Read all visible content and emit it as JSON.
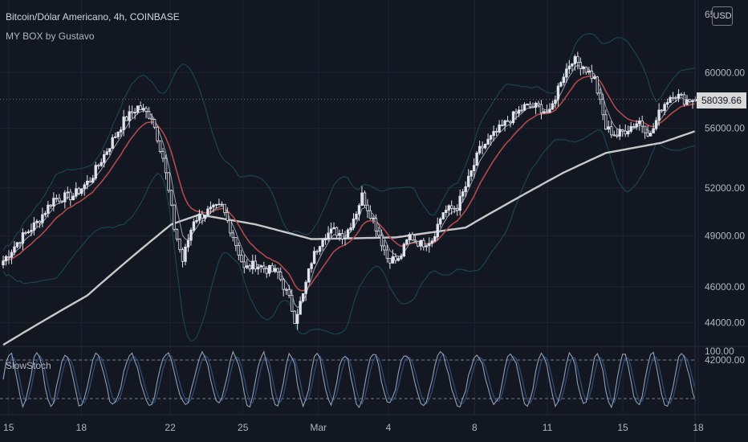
{
  "legend": {
    "title": "Bitcoin/Dólar Americano, 4h, COINBASE",
    "indicator": "MY BOX by Gustavo"
  },
  "price_axis": {
    "currency": "USD",
    "last_price_label": "58039.66",
    "ticks": [
      "60000.00",
      "56000.00",
      "52000.00",
      "49000.00",
      "46000.00",
      "44000.00",
      "42000.00"
    ],
    "top_partial": "65"
  },
  "oscillator": {
    "name": "SlowStoch",
    "top_label": "100.00"
  },
  "colors": {
    "background": "#131722",
    "grid": "#1f2331",
    "candle_white": "#e0e3eb",
    "candle_body_dark": "#131722",
    "sma_long": "#c8c8c8",
    "ema_red": "#b04a4a",
    "fast_ma": "#9aa0ad",
    "bands": "#18454f",
    "stoch": "#8fa0b6",
    "stoch_signal": "#2f4a73",
    "last_price_bg": "#d9d9d9"
  },
  "chart_data": {
    "type": "candlestick",
    "symbol": "Bitcoin/Dólar Americano",
    "interval": "4h",
    "exchange": "COINBASE",
    "x_ticks": [
      "15",
      "18",
      "22",
      "25",
      "Mar",
      "4",
      "8",
      "11",
      "15",
      "18"
    ],
    "ylim": [
      41500,
      65000
    ],
    "y_ticks": [
      60000,
      56000,
      52000,
      49000,
      46000,
      44000,
      42000
    ],
    "last_close": 58039.66,
    "price_path": [
      {
        "t": 0,
        "p": 47500
      },
      {
        "t": 6,
        "p": 48800
      },
      {
        "t": 12,
        "p": 49800
      },
      {
        "t": 18,
        "p": 51300
      },
      {
        "t": 25,
        "p": 51500
      },
      {
        "t": 31,
        "p": 52500
      },
      {
        "t": 37,
        "p": 54500
      },
      {
        "t": 43,
        "p": 56500
      },
      {
        "t": 48,
        "p": 57500
      },
      {
        "t": 53,
        "p": 56800
      },
      {
        "t": 57,
        "p": 54000
      },
      {
        "t": 61,
        "p": 49500
      },
      {
        "t": 64,
        "p": 47500
      },
      {
        "t": 68,
        "p": 50000
      },
      {
        "t": 73,
        "p": 50500
      },
      {
        "t": 78,
        "p": 50800
      },
      {
        "t": 82,
        "p": 49000
      },
      {
        "t": 86,
        "p": 47000
      },
      {
        "t": 90,
        "p": 47300
      },
      {
        "t": 94,
        "p": 47000
      },
      {
        "t": 98,
        "p": 46800
      },
      {
        "t": 102,
        "p": 45300
      },
      {
        "t": 104,
        "p": 44200
      },
      {
        "t": 107,
        "p": 45500
      },
      {
        "t": 110,
        "p": 47500
      },
      {
        "t": 114,
        "p": 49000
      },
      {
        "t": 118,
        "p": 49300
      },
      {
        "t": 122,
        "p": 49000
      },
      {
        "t": 126,
        "p": 50500
      },
      {
        "t": 128,
        "p": 51500
      },
      {
        "t": 132,
        "p": 50000
      },
      {
        "t": 137,
        "p": 47700
      },
      {
        "t": 141,
        "p": 47500
      },
      {
        "t": 145,
        "p": 49000
      },
      {
        "t": 149,
        "p": 48500
      },
      {
        "t": 153,
        "p": 48800
      },
      {
        "t": 157,
        "p": 50500
      },
      {
        "t": 162,
        "p": 50800
      },
      {
        "t": 166,
        "p": 52500
      },
      {
        "t": 170,
        "p": 54500
      },
      {
        "t": 175,
        "p": 55500
      },
      {
        "t": 180,
        "p": 56500
      },
      {
        "t": 186,
        "p": 57500
      },
      {
        "t": 191,
        "p": 57500
      },
      {
        "t": 195,
        "p": 57000
      },
      {
        "t": 199,
        "p": 59500
      },
      {
        "t": 203,
        "p": 61000
      },
      {
        "t": 207,
        "p": 60500
      },
      {
        "t": 211,
        "p": 59500
      },
      {
        "t": 215,
        "p": 56000
      },
      {
        "t": 219,
        "p": 55500
      },
      {
        "t": 223,
        "p": 56000
      },
      {
        "t": 227,
        "p": 56500
      },
      {
        "t": 231,
        "p": 55500
      },
      {
        "t": 235,
        "p": 57500
      },
      {
        "t": 239,
        "p": 58500
      },
      {
        "t": 243,
        "p": 58000
      },
      {
        "t": 247,
        "p": 58039.66
      }
    ],
    "sma_long": [
      {
        "t": 0,
        "p": 42800
      },
      {
        "t": 30,
        "p": 45500
      },
      {
        "t": 60,
        "p": 49700
      },
      {
        "t": 70,
        "p": 50300
      },
      {
        "t": 90,
        "p": 49700
      },
      {
        "t": 110,
        "p": 48800
      },
      {
        "t": 140,
        "p": 48900
      },
      {
        "t": 165,
        "p": 49500
      },
      {
        "t": 180,
        "p": 51000
      },
      {
        "t": 200,
        "p": 53000
      },
      {
        "t": 215,
        "p": 54300
      },
      {
        "t": 235,
        "p": 55000
      },
      {
        "t": 247,
        "p": 55800
      }
    ],
    "stoch": {
      "upper_level": 80,
      "lower_level": 20,
      "amplitude": 40,
      "mid": 50,
      "period": 11
    }
  }
}
